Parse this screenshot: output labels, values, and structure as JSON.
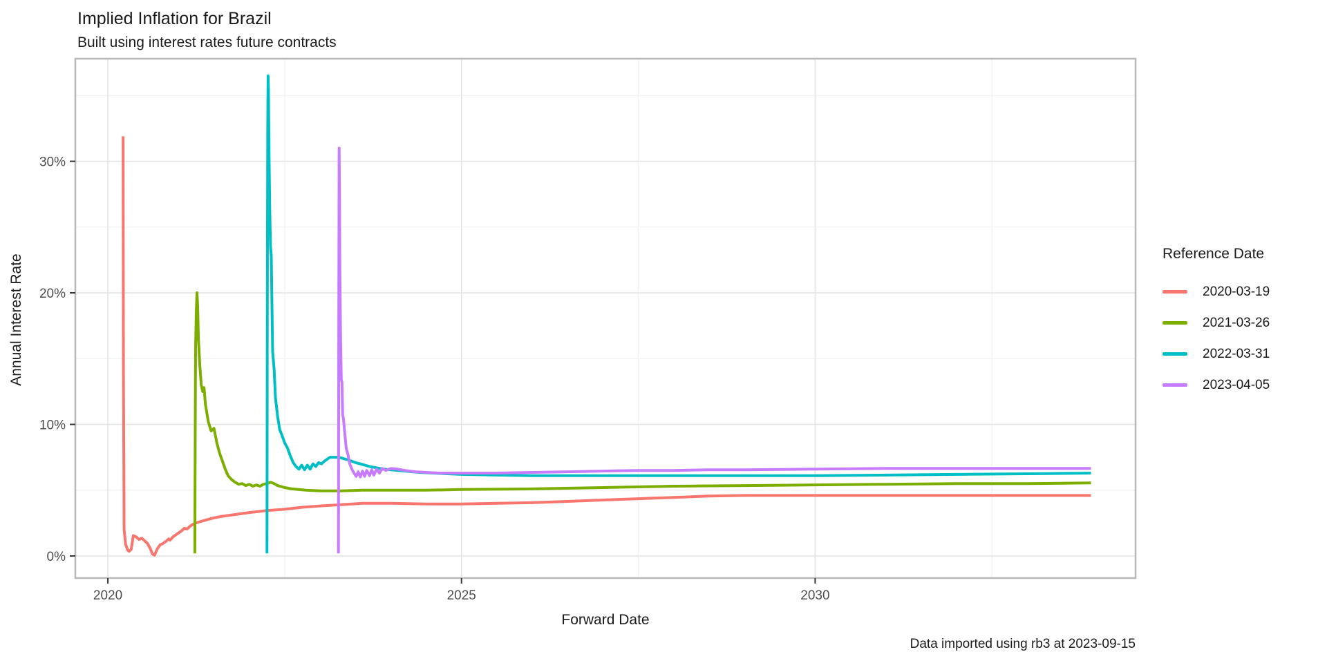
{
  "chart_data": {
    "type": "line",
    "title": "Implied Inflation for Brazil",
    "subtitle": "Built using interest rates future contracts",
    "caption": "Data imported using rb3 at 2023-09-15",
    "xlabel": "Forward Date",
    "ylabel": "Annual Interest Rate",
    "legend_title": "Reference Date",
    "legend_position": "right",
    "grid": true,
    "xlim": [
      2019.54,
      2034.53
    ],
    "ylim": [
      -1.68,
      37.8
    ],
    "x_ticks": [
      {
        "value": 2020,
        "label": "2020"
      },
      {
        "value": 2025,
        "label": "2025"
      },
      {
        "value": 2030,
        "label": "2030"
      }
    ],
    "x_minor": [
      2022.5,
      2027.5,
      2032.5
    ],
    "y_ticks": [
      {
        "value": 0,
        "label": "0%"
      },
      {
        "value": 10,
        "label": "10%"
      },
      {
        "value": 20,
        "label": "20%"
      },
      {
        "value": 30,
        "label": "30%"
      }
    ],
    "y_minor": [
      5,
      15,
      25,
      35
    ],
    "theme": {
      "grid_major": "#e4e4e4",
      "grid_minor": "#f1f1f1",
      "panel_border": "#b8b8b8",
      "tick_color": "#333333",
      "axis_text_color": "#4d4d4d",
      "text_color": "#1a1a1a",
      "panel_fill": "#ffffff"
    },
    "series": [
      {
        "name": "2020-03-19",
        "color": "#F8766D",
        "points": [
          [
            2020.215,
            31.9
          ],
          [
            2020.22,
            14.0
          ],
          [
            2020.23,
            2.0
          ],
          [
            2020.25,
            0.9
          ],
          [
            2020.28,
            0.45
          ],
          [
            2020.3,
            0.35
          ],
          [
            2020.33,
            0.5
          ],
          [
            2020.36,
            1.55
          ],
          [
            2020.4,
            1.45
          ],
          [
            2020.44,
            1.25
          ],
          [
            2020.48,
            1.35
          ],
          [
            2020.52,
            1.15
          ],
          [
            2020.56,
            0.95
          ],
          [
            2020.6,
            0.55
          ],
          [
            2020.63,
            0.15
          ],
          [
            2020.66,
            0.05
          ],
          [
            2020.7,
            0.55
          ],
          [
            2020.74,
            0.85
          ],
          [
            2020.78,
            0.95
          ],
          [
            2020.82,
            1.1
          ],
          [
            2020.86,
            1.3
          ],
          [
            2020.88,
            1.2
          ],
          [
            2020.92,
            1.45
          ],
          [
            2020.96,
            1.6
          ],
          [
            2021.0,
            1.75
          ],
          [
            2021.04,
            1.9
          ],
          [
            2021.08,
            2.1
          ],
          [
            2021.12,
            2.05
          ],
          [
            2021.16,
            2.25
          ],
          [
            2021.2,
            2.4
          ],
          [
            2021.24,
            2.5
          ],
          [
            2021.3,
            2.6
          ],
          [
            2021.4,
            2.75
          ],
          [
            2021.5,
            2.9
          ],
          [
            2021.6,
            3.0
          ],
          [
            2021.8,
            3.15
          ],
          [
            2022.0,
            3.3
          ],
          [
            2022.25,
            3.45
          ],
          [
            2022.5,
            3.55
          ],
          [
            2022.75,
            3.7
          ],
          [
            2023.0,
            3.8
          ],
          [
            2023.3,
            3.9
          ],
          [
            2023.6,
            4.0
          ],
          [
            2024.0,
            4.0
          ],
          [
            2024.5,
            3.95
          ],
          [
            2025.0,
            3.95
          ],
          [
            2025.5,
            4.0
          ],
          [
            2026.0,
            4.05
          ],
          [
            2026.5,
            4.15
          ],
          [
            2027.0,
            4.25
          ],
          [
            2027.5,
            4.35
          ],
          [
            2028.0,
            4.45
          ],
          [
            2028.5,
            4.55
          ],
          [
            2029.0,
            4.6
          ],
          [
            2030.0,
            4.6
          ],
          [
            2031.0,
            4.6
          ],
          [
            2032.0,
            4.6
          ],
          [
            2033.0,
            4.6
          ],
          [
            2033.9,
            4.6
          ]
        ]
      },
      {
        "name": "2021-03-26",
        "color": "#7CAE00",
        "points": [
          [
            2021.23,
            0.2
          ],
          [
            2021.235,
            10.0
          ],
          [
            2021.24,
            16.0
          ],
          [
            2021.25,
            18.5
          ],
          [
            2021.26,
            20.0
          ],
          [
            2021.27,
            19.0
          ],
          [
            2021.28,
            16.5
          ],
          [
            2021.3,
            14.5
          ],
          [
            2021.32,
            13.0
          ],
          [
            2021.34,
            12.5
          ],
          [
            2021.36,
            12.8
          ],
          [
            2021.38,
            11.5
          ],
          [
            2021.42,
            10.2
          ],
          [
            2021.46,
            9.5
          ],
          [
            2021.5,
            9.7
          ],
          [
            2021.54,
            8.6
          ],
          [
            2021.58,
            7.8
          ],
          [
            2021.62,
            7.2
          ],
          [
            2021.66,
            6.6
          ],
          [
            2021.7,
            6.1
          ],
          [
            2021.75,
            5.8
          ],
          [
            2021.8,
            5.6
          ],
          [
            2021.85,
            5.45
          ],
          [
            2021.9,
            5.5
          ],
          [
            2021.95,
            5.35
          ],
          [
            2022.0,
            5.45
          ],
          [
            2022.05,
            5.3
          ],
          [
            2022.1,
            5.4
          ],
          [
            2022.15,
            5.3
          ],
          [
            2022.2,
            5.45
          ],
          [
            2022.25,
            5.5
          ],
          [
            2022.3,
            5.6
          ],
          [
            2022.35,
            5.5
          ],
          [
            2022.4,
            5.35
          ],
          [
            2022.5,
            5.2
          ],
          [
            2022.6,
            5.1
          ],
          [
            2022.8,
            5.0
          ],
          [
            2023.0,
            4.95
          ],
          [
            2023.3,
            4.95
          ],
          [
            2023.6,
            5.0
          ],
          [
            2024.0,
            5.0
          ],
          [
            2024.5,
            5.0
          ],
          [
            2025.0,
            5.05
          ],
          [
            2026.0,
            5.1
          ],
          [
            2027.0,
            5.2
          ],
          [
            2028.0,
            5.3
          ],
          [
            2029.0,
            5.35
          ],
          [
            2030.0,
            5.4
          ],
          [
            2031.0,
            5.45
          ],
          [
            2032.0,
            5.5
          ],
          [
            2033.0,
            5.5
          ],
          [
            2033.9,
            5.55
          ]
        ]
      },
      {
        "name": "2022-03-31",
        "color": "#00BFC4",
        "points": [
          [
            2022.25,
            0.2
          ],
          [
            2022.255,
            20.0
          ],
          [
            2022.26,
            33.0
          ],
          [
            2022.265,
            36.5
          ],
          [
            2022.27,
            35.5
          ],
          [
            2022.28,
            30.0
          ],
          [
            2022.29,
            26.0
          ],
          [
            2022.3,
            23.5
          ],
          [
            2022.31,
            22.8
          ],
          [
            2022.32,
            19.0
          ],
          [
            2022.33,
            15.5
          ],
          [
            2022.35,
            14.2
          ],
          [
            2022.37,
            12.0
          ],
          [
            2022.4,
            10.6
          ],
          [
            2022.43,
            9.6
          ],
          [
            2022.46,
            9.2
          ],
          [
            2022.5,
            8.6
          ],
          [
            2022.54,
            8.2
          ],
          [
            2022.58,
            7.6
          ],
          [
            2022.62,
            7.1
          ],
          [
            2022.66,
            6.8
          ],
          [
            2022.7,
            6.6
          ],
          [
            2022.74,
            6.9
          ],
          [
            2022.78,
            6.55
          ],
          [
            2022.82,
            6.9
          ],
          [
            2022.86,
            6.6
          ],
          [
            2022.9,
            7.0
          ],
          [
            2022.94,
            6.8
          ],
          [
            2022.98,
            7.1
          ],
          [
            2023.02,
            7.0
          ],
          [
            2023.06,
            7.2
          ],
          [
            2023.1,
            7.35
          ],
          [
            2023.14,
            7.5
          ],
          [
            2023.2,
            7.5
          ],
          [
            2023.26,
            7.5
          ],
          [
            2023.3,
            7.45
          ],
          [
            2023.4,
            7.3
          ],
          [
            2023.5,
            7.1
          ],
          [
            2023.6,
            6.95
          ],
          [
            2023.7,
            6.8
          ],
          [
            2023.8,
            6.7
          ],
          [
            2023.9,
            6.6
          ],
          [
            2024.0,
            6.55
          ],
          [
            2024.2,
            6.45
          ],
          [
            2024.4,
            6.35
          ],
          [
            2024.6,
            6.3
          ],
          [
            2024.8,
            6.25
          ],
          [
            2025.0,
            6.2
          ],
          [
            2025.5,
            6.15
          ],
          [
            2026.0,
            6.1
          ],
          [
            2027.0,
            6.1
          ],
          [
            2028.0,
            6.1
          ],
          [
            2029.0,
            6.1
          ],
          [
            2030.0,
            6.1
          ],
          [
            2031.0,
            6.15
          ],
          [
            2032.0,
            6.2
          ],
          [
            2033.0,
            6.25
          ],
          [
            2033.9,
            6.3
          ]
        ]
      },
      {
        "name": "2023-04-05",
        "color": "#C77CFF",
        "points": [
          [
            2023.26,
            0.2
          ],
          [
            2023.265,
            20.0
          ],
          [
            2023.27,
            31.0
          ],
          [
            2023.275,
            28.0
          ],
          [
            2023.28,
            22.0
          ],
          [
            2023.29,
            16.5
          ],
          [
            2023.3,
            13.4
          ],
          [
            2023.31,
            13.2
          ],
          [
            2023.32,
            10.7
          ],
          [
            2023.33,
            10.5
          ],
          [
            2023.35,
            9.3
          ],
          [
            2023.37,
            8.2
          ],
          [
            2023.39,
            7.8
          ],
          [
            2023.42,
            7.0
          ],
          [
            2023.45,
            6.6
          ],
          [
            2023.48,
            6.3
          ],
          [
            2023.51,
            6.05
          ],
          [
            2023.54,
            6.4
          ],
          [
            2023.57,
            6.0
          ],
          [
            2023.6,
            6.45
          ],
          [
            2023.63,
            6.05
          ],
          [
            2023.66,
            6.5
          ],
          [
            2023.7,
            6.1
          ],
          [
            2023.73,
            6.55
          ],
          [
            2023.76,
            6.15
          ],
          [
            2023.8,
            6.6
          ],
          [
            2023.84,
            6.3
          ],
          [
            2023.88,
            6.65
          ],
          [
            2023.93,
            6.5
          ],
          [
            2024.0,
            6.65
          ],
          [
            2024.1,
            6.6
          ],
          [
            2024.2,
            6.5
          ],
          [
            2024.35,
            6.4
          ],
          [
            2024.5,
            6.35
          ],
          [
            2024.7,
            6.3
          ],
          [
            2025.0,
            6.3
          ],
          [
            2025.5,
            6.3
          ],
          [
            2026.0,
            6.35
          ],
          [
            2026.5,
            6.4
          ],
          [
            2027.0,
            6.45
          ],
          [
            2027.5,
            6.5
          ],
          [
            2028.0,
            6.5
          ],
          [
            2028.5,
            6.55
          ],
          [
            2029.0,
            6.55
          ],
          [
            2030.0,
            6.6
          ],
          [
            2031.0,
            6.65
          ],
          [
            2032.0,
            6.65
          ],
          [
            2033.0,
            6.65
          ],
          [
            2033.9,
            6.65
          ]
        ]
      }
    ]
  }
}
